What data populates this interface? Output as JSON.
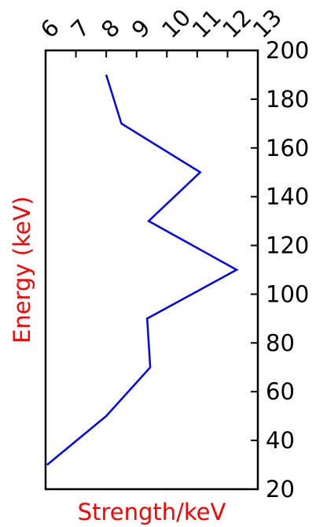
{
  "chart_data": {
    "type": "line",
    "title": "",
    "xlabel": "Strength/keV",
    "ylabel": "Energy (keV)",
    "label_color": "#ff0000",
    "line_color": "#0000ff",
    "xlim": [
      6,
      13
    ],
    "ylim": [
      20,
      200
    ],
    "x_ticks": [
      6,
      7,
      8,
      9,
      10,
      11,
      12,
      13
    ],
    "y_ticks": [
      20,
      40,
      60,
      80,
      100,
      120,
      140,
      160,
      180,
      200
    ],
    "x_axis_position": "top",
    "y_axis_position": "right",
    "grid": false,
    "series": [
      {
        "x": [
          6.05,
          8.0,
          9.45,
          9.35,
          12.3,
          9.4,
          11.1,
          8.5,
          8.0
        ],
        "y": [
          30,
          50,
          70,
          90,
          110,
          130,
          150,
          170,
          190
        ]
      }
    ]
  }
}
